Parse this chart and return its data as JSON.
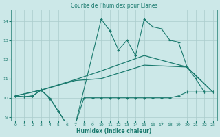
{
  "title": "Courbe de l'humidex pour Llanes",
  "xlabel": "Humidex (Indice chaleur)",
  "bg_color": "#cce8e8",
  "grid_color": "#aacccc",
  "line_color": "#1a7a6e",
  "xlim": [
    -0.5,
    23.5
  ],
  "ylim": [
    8.8,
    14.6
  ],
  "yticks": [
    9,
    10,
    11,
    12,
    13,
    14
  ],
  "xticks": [
    0,
    1,
    2,
    3,
    4,
    5,
    6,
    7,
    8,
    9,
    10,
    11,
    12,
    13,
    14,
    15,
    16,
    17,
    18,
    19,
    20,
    21,
    22,
    23
  ],
  "line_jagged_x": [
    0,
    1,
    2,
    3,
    4,
    5,
    6,
    7,
    10,
    11,
    12,
    13,
    14,
    15,
    16,
    17,
    18,
    19,
    20,
    21,
    22,
    23
  ],
  "line_jagged_y": [
    10.1,
    10.05,
    10.1,
    10.4,
    10.0,
    9.3,
    8.6,
    8.65,
    14.1,
    13.5,
    12.5,
    13.0,
    12.2,
    14.1,
    13.7,
    13.6,
    13.0,
    12.9,
    11.6,
    11.0,
    10.3,
    10.3
  ],
  "line_flat_x": [
    0,
    1,
    2,
    3,
    4,
    5,
    6,
    7,
    8,
    9,
    10,
    11,
    12,
    13,
    14,
    15,
    16,
    17,
    18,
    19,
    20,
    21,
    22,
    23
  ],
  "line_flat_y": [
    10.1,
    10.05,
    10.1,
    10.4,
    9.95,
    9.3,
    8.6,
    8.65,
    10.0,
    10.0,
    10.0,
    10.0,
    10.0,
    10.0,
    10.0,
    10.0,
    10.0,
    10.0,
    10.0,
    10.1,
    10.3,
    10.3,
    10.3,
    10.3
  ],
  "line_upper_x": [
    0,
    3,
    7,
    10,
    15,
    20,
    23
  ],
  "line_upper_y": [
    10.1,
    10.4,
    10.95,
    11.4,
    12.2,
    11.6,
    10.3
  ],
  "line_lower_x": [
    0,
    3,
    7,
    10,
    15,
    20,
    23
  ],
  "line_lower_y": [
    10.1,
    10.4,
    10.9,
    11.0,
    11.7,
    11.6,
    10.3
  ]
}
